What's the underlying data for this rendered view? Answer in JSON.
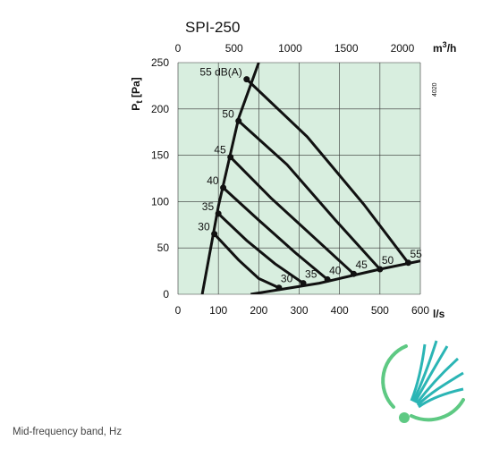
{
  "chart_data": {
    "type": "line",
    "title": "SPI-250",
    "xlabel": "l/s",
    "ylabel": "Pt [Pa]",
    "secondary_xlabel": "m3/h",
    "ref_number": "4020",
    "xlim": [
      0,
      600
    ],
    "ylim": [
      0,
      250
    ],
    "secondary_xlim": [
      0,
      2160
    ],
    "x_ticks": [
      "0",
      "100",
      "200",
      "300",
      "400",
      "500",
      "600"
    ],
    "y_ticks": [
      "0",
      "50",
      "100",
      "150",
      "200",
      "250"
    ],
    "secondary_x_ticks": [
      "0",
      "500",
      "1000",
      "1500",
      "2000"
    ],
    "grid": true,
    "background_color": "#d8eedf",
    "series": [
      {
        "name": "30",
        "x": [
          90,
          150,
          200,
          250
        ],
        "y": [
          65,
          37,
          17,
          7
        ]
      },
      {
        "name": "35",
        "x": [
          100,
          170,
          240,
          310
        ],
        "y": [
          87,
          58,
          33,
          12
        ]
      },
      {
        "name": "40",
        "x": [
          112,
          200,
          290,
          370
        ],
        "y": [
          115,
          80,
          45,
          16
        ]
      },
      {
        "name": "45",
        "x": [
          130,
          230,
          340,
          435
        ],
        "y": [
          148,
          104,
          60,
          22
        ]
      },
      {
        "name": "50",
        "x": [
          150,
          270,
          390,
          500
        ],
        "y": [
          187,
          140,
          80,
          27
        ]
      },
      {
        "name": "55 dB(A)",
        "x": [
          170,
          320,
          460,
          570
        ],
        "y": [
          232,
          170,
          97,
          34
        ]
      }
    ],
    "system_curve": {
      "x": [
        60,
        100,
        150,
        200
      ],
      "y": [
        0,
        95,
        190,
        250
      ]
    },
    "duct_curve": {
      "x": [
        180,
        350,
        500,
        600
      ],
      "y": [
        0,
        12,
        27,
        36
      ]
    },
    "outlet_points_labels": [
      "30",
      "35",
      "40",
      "45",
      "50",
      "55"
    ]
  },
  "footer": {
    "note": "Mid-frequency band, Hz"
  },
  "colors": {
    "plot_bg": "#d8eedf",
    "curve": "#111111",
    "logo_teal": "#2bb5b5",
    "logo_green": "#5ec983"
  }
}
